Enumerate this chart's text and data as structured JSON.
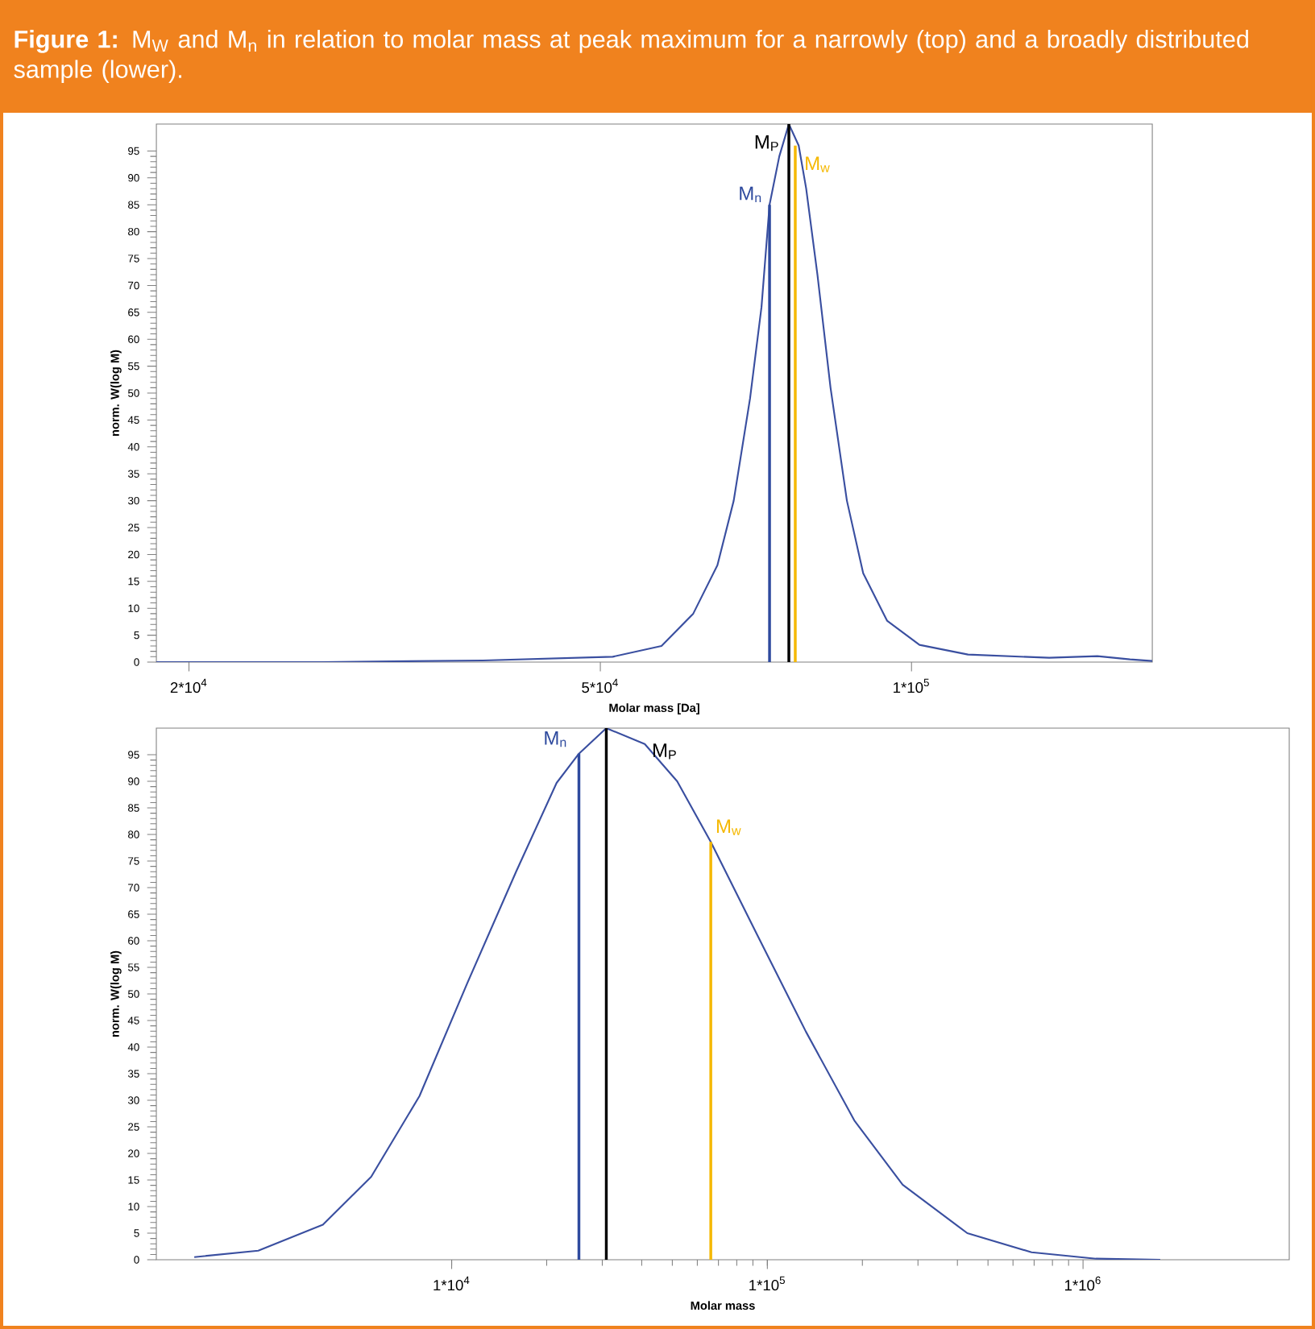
{
  "chart_data": [
    {
      "type": "line",
      "title": "**Figure 1:** M$_{W}$ and M$_{n}$ in relation to molar mass at peak maximum for a narrowly (top) and a broadly distributed sample (lower).",
      "xlabel": "Molar mass [Da]",
      "ylabel": "norm. W(log M)",
      "log": "x",
      "xlim": [
        18600,
        171000
      ],
      "ylim": [
        0,
        100
      ],
      "xticks": [
        {
          "value": 20000,
          "label": "2*10$^{4}$"
        },
        {
          "value": 50000,
          "label": "5*10$^{4}$"
        },
        {
          "value": 100000,
          "label": "1*10$^{5}$"
        }
      ],
      "yticks": [
        0,
        5,
        10,
        15,
        20,
        25,
        30,
        35,
        40,
        45,
        50,
        55,
        60,
        65,
        70,
        75,
        80,
        85,
        90,
        95
      ],
      "series": [
        {
          "color": "#3a4fa0",
          "x": [
            18600,
            26900,
            38500,
            51400,
            57300,
            61500,
            64900,
            67300,
            69800,
            71600,
            72900,
            74500,
            76100,
            77800,
            79100,
            81100,
            83500,
            86600,
            89800,
            94700,
            101800,
            113400,
            135900,
            151300,
            162700,
            171000
          ],
          "values": [
            0,
            0,
            0.3,
            1,
            3,
            9,
            18,
            30,
            49,
            66,
            85,
            94,
            100,
            96,
            88,
            72,
            51,
            30,
            16.5,
            7.7,
            3.2,
            1.4,
            0.8,
            1.1,
            0.5,
            0.2
          ]
        },
        {
          "name": "M$_{n}$",
          "color": "#2e4a9e",
          "x": [
            72900,
            72900
          ],
          "values": [
            0,
            85
          ]
        },
        {
          "name": "M$_{P}$",
          "color": "#000000",
          "x": [
            76100,
            76100
          ],
          "values": [
            0,
            100
          ]
        },
        {
          "name": "M$_{w}$",
          "color": "#f5b800",
          "x": [
            77200,
            77200
          ],
          "values": [
            0,
            96
          ]
        }
      ]
    },
    {
      "type": "line",
      "xlabel": "Molar mass",
      "ylabel": "norm. W(log M)",
      "log": "x",
      "xlim": [
        1160,
        4500000
      ],
      "ylim": [
        0,
        100
      ],
      "xticks": [
        {
          "value": 10000,
          "label": "1*10$^{4}$"
        },
        {
          "value": 100000,
          "label": "1*10$^{5}$"
        },
        {
          "value": 1000000,
          "label": "1*10$^{6}$"
        }
      ],
      "yticks": [
        0,
        5,
        10,
        15,
        20,
        25,
        30,
        35,
        40,
        45,
        50,
        55,
        60,
        65,
        70,
        75,
        80,
        85,
        90,
        95
      ],
      "series": [
        {
          "color": "#3a4fa0",
          "x": [
            1530,
            2440,
            3910,
            5560,
            7910,
            11200,
            16000,
            21500,
            25300,
            30900,
            40900,
            51800,
            66200,
            93100,
            132500,
            188600,
            268300,
            429900,
            687000,
            1099000,
            1757000
          ],
          "values": [
            0.5,
            1.7,
            6.6,
            15.6,
            30.8,
            52,
            73,
            89.7,
            95.2,
            100,
            97,
            90,
            78.6,
            61,
            42.9,
            26.2,
            14.1,
            5,
            1.4,
            0.2,
            0
          ]
        },
        {
          "name": "M$_{n}$",
          "color": "#2e4a9e",
          "x": [
            25300,
            25300
          ],
          "values": [
            0,
            95.2
          ]
        },
        {
          "name": "M$_{P}$",
          "color": "#000000",
          "x": [
            30900,
            30900
          ],
          "values": [
            0,
            100
          ]
        },
        {
          "name": "M$_{w}$",
          "color": "#f5b800",
          "x": [
            66200,
            66200
          ],
          "values": [
            0,
            78.6
          ]
        }
      ]
    }
  ]
}
